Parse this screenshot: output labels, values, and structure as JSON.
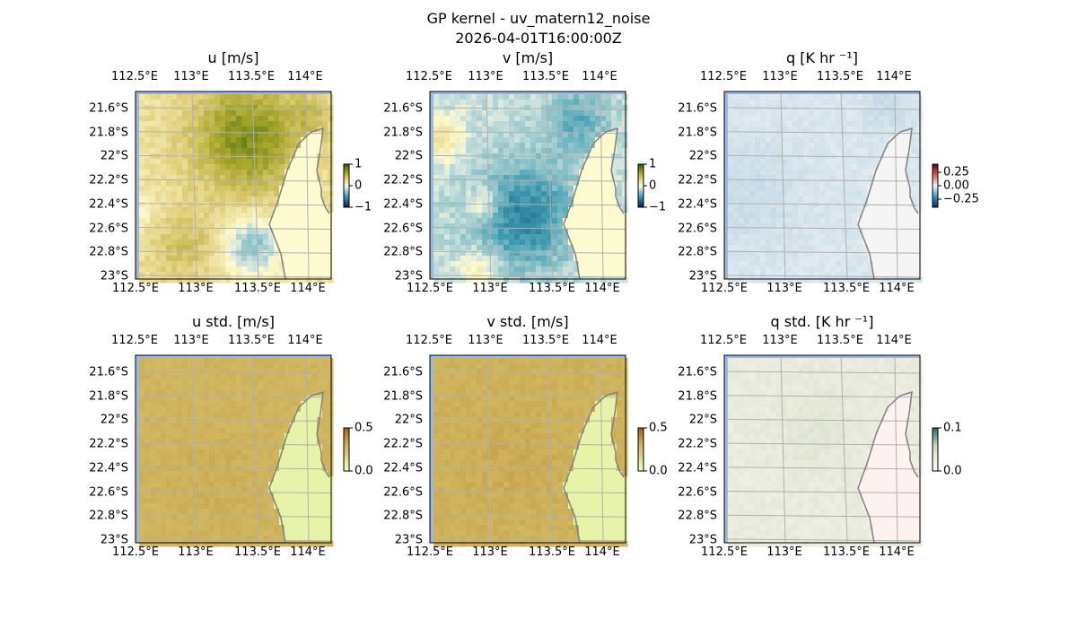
{
  "figure": {
    "title_line1": "GP kernel - uv_matern12_noise",
    "title_line2": "2026-04-01T16:00:00Z"
  },
  "chart_data": {
    "type": "heatmap",
    "lon_ticks": [
      "112.5°E",
      "113°E",
      "113.5°E",
      "114°E"
    ],
    "lon_tick_values": [
      112.5,
      113.0,
      113.5,
      114.0
    ],
    "lat_ticks": [
      "21.6°S",
      "21.8°S",
      "22°S",
      "22.2°S",
      "22.4°S",
      "22.6°S",
      "22.8°S",
      "23°S"
    ],
    "lat_tick_values": [
      -21.6,
      -21.8,
      -22.0,
      -22.2,
      -22.4,
      -22.6,
      -22.8,
      -23.0
    ],
    "extent": {
      "lon": [
        112.49,
        114.17
      ],
      "lat": [
        -23.03,
        -21.46
      ]
    },
    "ocean_color": "#9db8e3",
    "grid_color": "#b0b0b0",
    "coast_color": "#808080",
    "panels": [
      {
        "title": "u [m/s]",
        "cbar_ticks": [
          "1",
          "0",
          "−1"
        ],
        "cbar_tick_values": [
          1,
          0,
          -1
        ],
        "vmin": -1,
        "vmax": 1,
        "cmap": [
          [
            -1,
            "#0b1d5a"
          ],
          [
            -0.5,
            "#3f9bb0"
          ],
          [
            -0.12,
            "#d4e6df"
          ],
          [
            0,
            "#fffbd0"
          ],
          [
            0.3,
            "#e2d07e"
          ],
          [
            0.6,
            "#a9a62c"
          ],
          [
            1,
            "#2d5a0a"
          ]
        ],
        "sea_base": 0.18,
        "land_value": 0.0,
        "noise": 0.08,
        "blobs": [
          [
            113.45,
            -21.85,
            0.55,
            0.33
          ],
          [
            112.9,
            -22.75,
            0.22,
            0.2
          ],
          [
            113.5,
            -22.75,
            -0.5,
            0.17
          ],
          [
            114.0,
            -21.65,
            0.2,
            0.12
          ],
          [
            112.55,
            -22.45,
            -0.15,
            0.12
          ]
        ]
      },
      {
        "title": "v [m/s]",
        "cbar_ticks": [
          "1",
          "0",
          "−1"
        ],
        "cbar_tick_values": [
          1,
          0,
          -1
        ],
        "vmin": -1,
        "vmax": 1,
        "cmap": [
          [
            -1,
            "#0b1d5a"
          ],
          [
            -0.5,
            "#3f9bb0"
          ],
          [
            -0.12,
            "#d4e6df"
          ],
          [
            0,
            "#fffbd0"
          ],
          [
            0.3,
            "#e2d07e"
          ],
          [
            0.6,
            "#a9a62c"
          ],
          [
            1,
            "#2d5a0a"
          ]
        ],
        "sea_base": -0.15,
        "land_value": 0.0,
        "noise": 0.08,
        "blobs": [
          [
            113.3,
            -22.5,
            -0.45,
            0.3
          ],
          [
            113.75,
            -21.7,
            -0.25,
            0.2
          ],
          [
            112.6,
            -21.85,
            0.35,
            0.12
          ],
          [
            112.95,
            -22.4,
            0.3,
            0.1
          ],
          [
            112.9,
            -22.95,
            0.25,
            0.12
          ]
        ]
      },
      {
        "title": "q [K hr ⁻¹]",
        "cbar_ticks": [
          "0.25",
          "0.00",
          "−0.25"
        ],
        "cbar_tick_values": [
          0.25,
          0,
          -0.25
        ],
        "vmin": -0.4,
        "vmax": 0.4,
        "cmap": [
          [
            -0.4,
            "#053061"
          ],
          [
            -0.2,
            "#4393c3"
          ],
          [
            0,
            "#f5f5f5"
          ],
          [
            0.2,
            "#d6604d"
          ],
          [
            0.4,
            "#67001f"
          ]
        ],
        "sea_base": -0.03,
        "land_value": 0.0,
        "noise": 0.01,
        "blobs": [
          [
            112.7,
            -22.3,
            -0.02,
            0.3
          ],
          [
            113.9,
            -21.6,
            -0.02,
            0.15
          ]
        ]
      },
      {
        "title": "u std. [m/s]",
        "cbar_ticks": [
          "0.5",
          "0.0"
        ],
        "cbar_tick_values": [
          0.5,
          0.0
        ],
        "vmin": 0,
        "vmax": 0.5,
        "cmap": [
          [
            0,
            "#f9fcc0"
          ],
          [
            0.08,
            "#e4f2a4"
          ],
          [
            0.2,
            "#dcc87a"
          ],
          [
            0.3,
            "#cfb35c"
          ],
          [
            0.5,
            "#a35e1c"
          ]
        ],
        "sea_base": 0.29,
        "land_value": 0.07,
        "noise": 0.02,
        "blobs": [
          [
            113.2,
            -22.5,
            0.02,
            0.3
          ]
        ]
      },
      {
        "title": "v std. [m/s]",
        "cbar_ticks": [
          "0.5",
          "0.0"
        ],
        "cbar_tick_values": [
          0.5,
          0.0
        ],
        "vmin": 0,
        "vmax": 0.5,
        "cmap": [
          [
            0,
            "#f9fcc0"
          ],
          [
            0.08,
            "#e4f2a4"
          ],
          [
            0.2,
            "#dcc87a"
          ],
          [
            0.3,
            "#cfb35c"
          ],
          [
            0.5,
            "#a35e1c"
          ]
        ],
        "sea_base": 0.3,
        "land_value": 0.07,
        "noise": 0.02,
        "blobs": [
          [
            113.2,
            -22.3,
            0.02,
            0.3
          ]
        ]
      },
      {
        "title": "q std. [K hr ⁻¹]",
        "cbar_ticks": [
          "0.1",
          "0.0"
        ],
        "cbar_tick_values": [
          0.1,
          0.0
        ],
        "vmin": 0,
        "vmax": 0.1,
        "cmap": [
          [
            0,
            "#fff3f1"
          ],
          [
            0.03,
            "#eeeee3"
          ],
          [
            0.06,
            "#c6d5b7"
          ],
          [
            0.1,
            "#1d6b6d"
          ]
        ],
        "sea_base": 0.033,
        "land_value": 0.004,
        "noise": 0.004,
        "blobs": [
          [
            113.3,
            -22.1,
            0.006,
            0.25
          ]
        ]
      }
    ]
  }
}
